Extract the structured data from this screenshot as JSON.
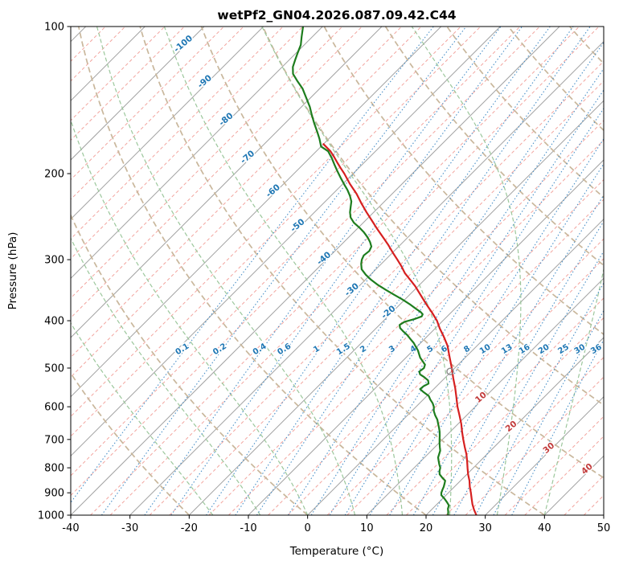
{
  "title": "wetPf2_GN04.2026.087.09.42.C44",
  "chart_data": {
    "type": "line",
    "variant": "skew-t-log-p",
    "grid": true,
    "x_axis": {
      "label": "Temperature (°C)",
      "min": -40,
      "max": 50,
      "ticks": [
        -40,
        -30,
        -20,
        -10,
        0,
        10,
        20,
        30,
        40,
        50
      ]
    },
    "y_axis": {
      "label": "Pressure (hPa)",
      "min": 100,
      "max": 1000,
      "scale": "log",
      "ticks": [
        100,
        200,
        300,
        400,
        500,
        600,
        700,
        800,
        900,
        1000
      ]
    },
    "series": [
      {
        "name": "temperature",
        "color": "#d62020",
        "points": [
          [
            1000,
            28.5
          ],
          [
            975,
            27.2
          ],
          [
            950,
            26.0
          ],
          [
            925,
            24.9
          ],
          [
            900,
            23.8
          ],
          [
            875,
            22.6
          ],
          [
            850,
            21.5
          ],
          [
            825,
            20.2
          ],
          [
            800,
            19.0
          ],
          [
            775,
            17.8
          ],
          [
            750,
            16.5
          ],
          [
            725,
            15.0
          ],
          [
            700,
            13.5
          ],
          [
            675,
            12.0
          ],
          [
            650,
            10.5
          ],
          [
            625,
            8.8
          ],
          [
            600,
            7.0
          ],
          [
            575,
            5.3
          ],
          [
            550,
            3.5
          ],
          [
            525,
            1.5
          ],
          [
            500,
            -0.5
          ],
          [
            475,
            -2.7
          ],
          [
            450,
            -5.0
          ],
          [
            430,
            -7.3
          ],
          [
            415,
            -9.2
          ],
          [
            400,
            -11.0
          ],
          [
            385,
            -13.2
          ],
          [
            370,
            -15.6
          ],
          [
            355,
            -18.0
          ],
          [
            340,
            -20.5
          ],
          [
            330,
            -22.4
          ],
          [
            320,
            -24.4
          ],
          [
            310,
            -26.1
          ],
          [
            300,
            -28.0
          ],
          [
            290,
            -30.0
          ],
          [
            280,
            -32.0
          ],
          [
            270,
            -34.2
          ],
          [
            260,
            -36.5
          ],
          [
            250,
            -38.8
          ],
          [
            240,
            -41.2
          ],
          [
            230,
            -43.6
          ],
          [
            220,
            -46.0
          ],
          [
            210,
            -48.8
          ],
          [
            200,
            -51.5
          ],
          [
            195,
            -53.0
          ],
          [
            190,
            -54.5
          ],
          [
            185,
            -56.0
          ],
          [
            180,
            -57.6
          ],
          [
            174,
            -60.0
          ]
        ]
      },
      {
        "name": "dewpoint",
        "color": "#1e7d1e",
        "points": [
          [
            1000,
            23.7
          ],
          [
            985,
            23.2
          ],
          [
            970,
            22.6
          ],
          [
            955,
            22.2
          ],
          [
            940,
            21.3
          ],
          [
            925,
            20.3
          ],
          [
            910,
            19.2
          ],
          [
            900,
            18.8
          ],
          [
            888,
            18.5
          ],
          [
            875,
            18.2
          ],
          [
            862,
            17.8
          ],
          [
            850,
            17.4
          ],
          [
            838,
            16.4
          ],
          [
            825,
            15.4
          ],
          [
            812,
            14.8
          ],
          [
            800,
            14.4
          ],
          [
            788,
            13.7
          ],
          [
            775,
            13.0
          ],
          [
            762,
            12.3
          ],
          [
            750,
            11.9
          ],
          [
            738,
            11.5
          ],
          [
            725,
            10.8
          ],
          [
            712,
            10.1
          ],
          [
            700,
            9.5
          ],
          [
            688,
            8.9
          ],
          [
            675,
            8.2
          ],
          [
            662,
            7.4
          ],
          [
            650,
            6.6
          ],
          [
            638,
            5.8
          ],
          [
            625,
            4.7
          ],
          [
            612,
            3.7
          ],
          [
            600,
            3.0
          ],
          [
            590,
            2.2
          ],
          [
            580,
            1.2
          ],
          [
            570,
            0.3
          ],
          [
            560,
            -1.2
          ],
          [
            552,
            -2.3
          ],
          [
            545,
            -2.2
          ],
          [
            538,
            -1.8
          ],
          [
            530,
            -2.4
          ],
          [
            522,
            -3.6
          ],
          [
            515,
            -4.8
          ],
          [
            508,
            -5.4
          ],
          [
            500,
            -5.2
          ],
          [
            492,
            -5.6
          ],
          [
            484,
            -6.6
          ],
          [
            476,
            -7.6
          ],
          [
            468,
            -8.4
          ],
          [
            460,
            -9.2
          ],
          [
            452,
            -10.2
          ],
          [
            444,
            -11.2
          ],
          [
            436,
            -12.4
          ],
          [
            428,
            -13.6
          ],
          [
            420,
            -15.0
          ],
          [
            414,
            -16.0
          ],
          [
            408,
            -16.6
          ],
          [
            402,
            -16.3
          ],
          [
            397,
            -15.1
          ],
          [
            392,
            -14.3
          ],
          [
            388,
            -14.5
          ],
          [
            384,
            -15.2
          ],
          [
            378,
            -16.6
          ],
          [
            370,
            -18.4
          ],
          [
            362,
            -20.4
          ],
          [
            354,
            -22.6
          ],
          [
            346,
            -24.8
          ],
          [
            338,
            -27.0
          ],
          [
            330,
            -29.0
          ],
          [
            322,
            -30.8
          ],
          [
            314,
            -32.4
          ],
          [
            306,
            -33.4
          ],
          [
            300,
            -34.0
          ],
          [
            294,
            -34.4
          ],
          [
            288,
            -34.2
          ],
          [
            282,
            -34.6
          ],
          [
            276,
            -35.6
          ],
          [
            270,
            -36.8
          ],
          [
            264,
            -38.2
          ],
          [
            258,
            -39.8
          ],
          [
            252,
            -41.6
          ],
          [
            246,
            -43.0
          ],
          [
            240,
            -44.0
          ],
          [
            234,
            -44.8
          ],
          [
            228,
            -45.6
          ],
          [
            222,
            -46.8
          ],
          [
            216,
            -48.2
          ],
          [
            210,
            -49.8
          ],
          [
            204,
            -51.4
          ],
          [
            198,
            -53.0
          ],
          [
            192,
            -54.6
          ],
          [
            186,
            -56.2
          ],
          [
            180,
            -58.0
          ],
          [
            176,
            -60.0
          ],
          [
            170,
            -61.5
          ],
          [
            164,
            -63.2
          ],
          [
            158,
            -65.0
          ],
          [
            152,
            -66.8
          ],
          [
            146,
            -68.6
          ],
          [
            140,
            -70.7
          ],
          [
            134,
            -72.9
          ],
          [
            129,
            -75.2
          ],
          [
            125,
            -77.0
          ],
          [
            121,
            -78.2
          ],
          [
            117,
            -79.0
          ],
          [
            113,
            -79.8
          ],
          [
            109,
            -80.6
          ],
          [
            105,
            -81.8
          ],
          [
            100,
            -83.3
          ]
        ]
      }
    ],
    "isotherm_labels": {
      "blue": [
        -100,
        -90,
        -80,
        -70,
        -60,
        -50,
        -40,
        -30,
        -20
      ],
      "red": [
        10,
        20,
        30,
        40
      ]
    },
    "mixing_ratio_labels": [
      0.1,
      0.2,
      0.4,
      0.6,
      1,
      1.5,
      2,
      3,
      4,
      5,
      6,
      8,
      10,
      13,
      16,
      20,
      25,
      30,
      36
    ],
    "point_marker": {
      "pressure": 508,
      "temperature": -0.2,
      "symbol": "o",
      "color": "#8a8a8a"
    },
    "colors": {
      "isotherm": "#a2a2a2",
      "isotherm_dashed": "#f2a49e",
      "dry_adiabat": "#c9b79c",
      "moist_adiabat": "#9cc79c",
      "mixing_ratio": "#4a90c8",
      "label_blue": "#1f77b4",
      "label_red": "#c23b3b",
      "frame": "#000000"
    }
  }
}
